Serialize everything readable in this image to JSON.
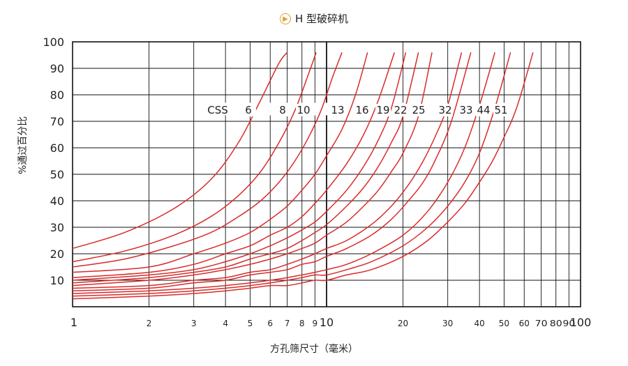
{
  "header": {
    "icon": "play-circle-icon",
    "title": "H 型破碎机"
  },
  "chart_data": {
    "type": "line",
    "title": "H 型破碎机",
    "xlabel": "方孔筛尺寸（毫米）",
    "ylabel": "%通过百分比",
    "x_scale": "log",
    "xlim": [
      1,
      100
    ],
    "ylim": [
      0,
      100
    ],
    "grid": true,
    "line_color": "#d92b2b",
    "x_ticks": [
      {
        "value": 1,
        "label": "1"
      },
      {
        "value": 2,
        "label": "2"
      },
      {
        "value": 3,
        "label": "3"
      },
      {
        "value": 4,
        "label": "4"
      },
      {
        "value": 5,
        "label": "5"
      },
      {
        "value": 6,
        "label": "6"
      },
      {
        "value": 7,
        "label": "7"
      },
      {
        "value": 8,
        "label": "8"
      },
      {
        "value": 9,
        "label": "9"
      },
      {
        "value": 10,
        "label": "10"
      },
      {
        "value": 20,
        "label": "20"
      },
      {
        "value": 30,
        "label": "30"
      },
      {
        "value": 40,
        "label": "40"
      },
      {
        "value": 50,
        "label": "50"
      },
      {
        "value": 60,
        "label": "60"
      },
      {
        "value": 70,
        "label": "70"
      },
      {
        "value": 80,
        "label": "80"
      },
      {
        "value": 90,
        "label": "90"
      },
      {
        "value": 100,
        "label": "100"
      }
    ],
    "y_ticks": [
      10,
      20,
      30,
      40,
      50,
      60,
      70,
      80,
      90,
      100
    ],
    "css_prefix": "CSS",
    "series": [
      {
        "name": "6",
        "x": [
          1,
          1.6,
          2.5,
          3.5,
          4.5,
          5.5,
          6.5,
          7.0
        ],
        "y": [
          22,
          28,
          37,
          48,
          62,
          78,
          92,
          96
        ]
      },
      {
        "name": "8",
        "x": [
          1,
          1.6,
          2.5,
          3.5,
          4.5,
          5.5,
          6.5,
          7.5,
          8.5,
          9.1
        ],
        "y": [
          17,
          21,
          27,
          34,
          42,
          51,
          62,
          74,
          88,
          96
        ]
      },
      {
        "name": "10",
        "x": [
          1,
          1.6,
          2.5,
          3.5,
          4.5,
          5.5,
          6.5,
          7.5,
          8.5,
          9.5,
          10.5,
          11.5
        ],
        "y": [
          15,
          18,
          23,
          28,
          34,
          40,
          47,
          55,
          64,
          74,
          86,
          96
        ]
      },
      {
        "name": "13",
        "x": [
          1,
          2,
          3,
          4,
          5,
          6,
          7,
          8,
          9,
          10,
          11.5,
          13,
          14.5
        ],
        "y": [
          13,
          15,
          20,
          24,
          28,
          33,
          38,
          44,
          50,
          57,
          67,
          80,
          96
        ]
      },
      {
        "name": "16",
        "x": [
          1,
          2,
          3,
          4,
          5,
          6,
          7,
          8,
          9,
          10,
          12,
          14,
          16,
          18.5
        ],
        "y": [
          11,
          13,
          16,
          20,
          23,
          27,
          30,
          34,
          39,
          44,
          54,
          65,
          78,
          96
        ]
      },
      {
        "name": "19",
        "x": [
          1,
          2,
          3,
          4,
          5,
          6,
          7,
          8,
          9,
          10,
          12,
          14,
          16,
          18,
          20.5
        ],
        "y": [
          10,
          12,
          14,
          17,
          20,
          23,
          26,
          29,
          32,
          36,
          44,
          53,
          63,
          75,
          96
        ]
      },
      {
        "name": "22",
        "x": [
          1,
          2,
          3,
          4,
          5,
          6,
          7,
          8,
          9,
          10,
          12,
          14,
          16,
          18,
          20,
          23
        ],
        "y": [
          9,
          11,
          13,
          15,
          18,
          20,
          22,
          25,
          28,
          31,
          38,
          45,
          53,
          62,
          72,
          96
        ]
      },
      {
        "name": "25",
        "x": [
          1,
          2,
          3,
          4,
          5,
          6,
          7,
          8,
          9,
          10,
          12,
          14,
          16,
          18,
          20,
          23,
          26
        ],
        "y": [
          8,
          10,
          12,
          14,
          16,
          18,
          20,
          22,
          24,
          27,
          32,
          38,
          44,
          51,
          58,
          72,
          96
        ]
      },
      {
        "name": "32",
        "x": [
          1,
          2,
          3,
          4,
          5,
          6,
          7,
          8,
          9,
          10,
          12,
          15,
          18,
          21,
          24,
          27,
          30,
          34
        ],
        "y": [
          7,
          8,
          10,
          11,
          13,
          14,
          16,
          18,
          20,
          22,
          25,
          31,
          38,
          46,
          55,
          65,
          76,
          96
        ]
      },
      {
        "name": "33",
        "x": [
          1,
          2,
          3,
          4,
          5,
          6,
          7,
          8,
          9,
          10,
          12,
          15,
          18,
          21,
          24,
          27,
          31,
          37
        ],
        "y": [
          6,
          7,
          9,
          10,
          12,
          13,
          14,
          16,
          17,
          19,
          22,
          27,
          33,
          40,
          47,
          56,
          70,
          96
        ]
      },
      {
        "name": "44",
        "x": [
          1,
          2,
          3,
          4,
          5,
          6,
          7,
          8,
          9,
          10,
          12,
          15,
          20,
          25,
          30,
          35,
          40,
          46
        ],
        "y": [
          5,
          6,
          7,
          8,
          9,
          10,
          11,
          12,
          13,
          14,
          16,
          20,
          27,
          36,
          47,
          60,
          76,
          96
        ]
      },
      {
        "name": "51",
        "x": [
          1,
          2,
          3,
          4,
          5,
          6,
          7,
          8,
          9,
          10,
          12,
          15,
          20,
          25,
          30,
          35,
          40,
          46,
          53
        ],
        "y": [
          4,
          5,
          6,
          7,
          8,
          9,
          10,
          11,
          12,
          12,
          14,
          17,
          23,
          30,
          38,
          47,
          58,
          75,
          96
        ]
      },
      {
        "name": "",
        "x": [
          1,
          2,
          3,
          4,
          5,
          6,
          7,
          8,
          9,
          10,
          12,
          15,
          20,
          25,
          30,
          35,
          40,
          45,
          50,
          56,
          65
        ],
        "y": [
          3,
          4,
          5,
          6,
          7,
          8,
          8,
          9,
          10,
          10,
          12,
          14,
          19,
          25,
          32,
          39,
          47,
          55,
          64,
          75,
          96
        ]
      }
    ]
  }
}
